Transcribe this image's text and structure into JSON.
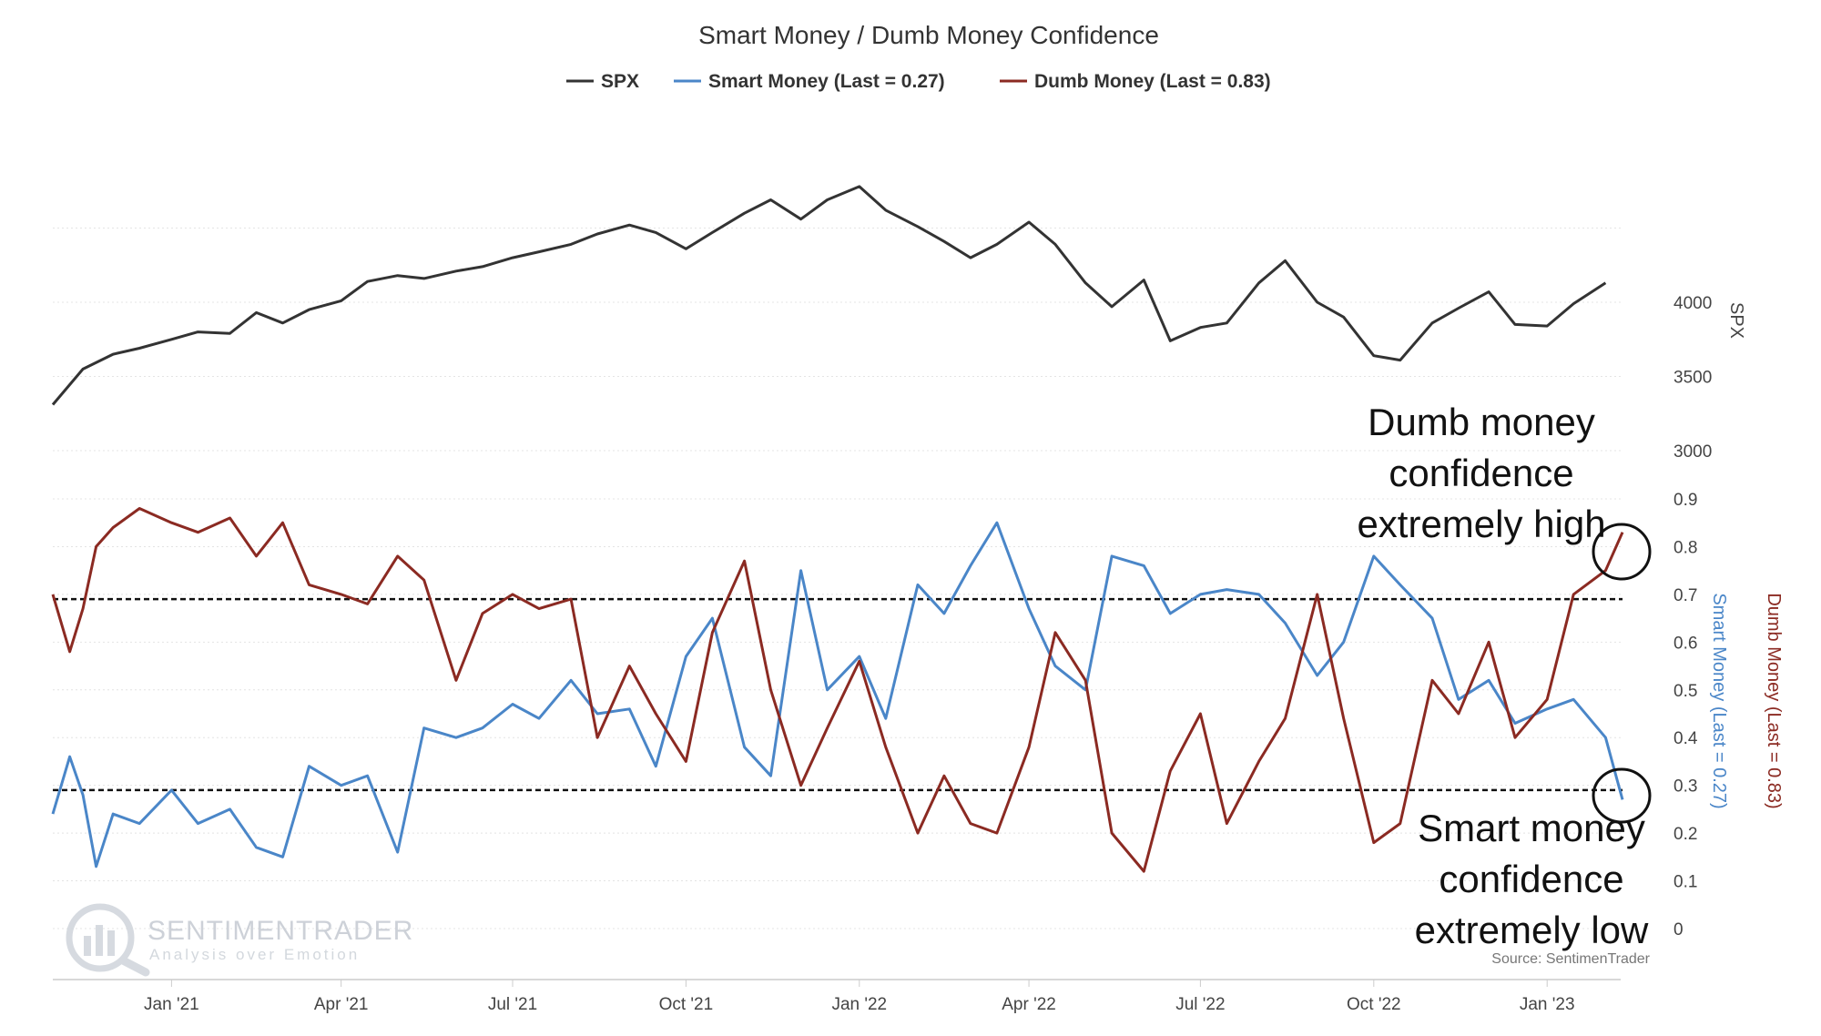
{
  "chart_data": {
    "type": "line",
    "title": "Smart Money / Dumb Money Confidence",
    "legend": [
      {
        "label": "SPX",
        "color": "#333333"
      },
      {
        "label": "Smart Money (Last = 0.27)",
        "color": "#4a86c8"
      },
      {
        "label": "Dumb Money (Last = 0.83)",
        "color": "#8b2a22"
      }
    ],
    "x_ticks": [
      "Jan '21",
      "Apr '21",
      "Jul '21",
      "Oct '21",
      "Jan '22",
      "Apr '22",
      "Jul '22",
      "Oct '22",
      "Jan '23"
    ],
    "spx_axis": {
      "label": "SPX",
      "ticks": [
        "4000",
        "3500",
        "3000"
      ],
      "range": [
        3000,
        4800
      ]
    },
    "confidence_axis": {
      "ticks": [
        "0.9",
        "0.8",
        "0.7",
        "0.6",
        "0.5",
        "0.4",
        "0.3",
        "0.2",
        "0.1",
        "0"
      ],
      "range": [
        0,
        0.9
      ]
    },
    "smart_axis_label": "Smart Money (Last = 0.27)",
    "dumb_axis_label": "Dumb Money (Last = 0.83)",
    "reference_lines": [
      0.69,
      0.29
    ],
    "series": [
      {
        "name": "SPX",
        "color": "#333333",
        "x": [
          "2020-10-30",
          "2020-11-15",
          "2020-12-01",
          "2020-12-15",
          "2021-01-01",
          "2021-01-15",
          "2021-02-01",
          "2021-02-15",
          "2021-03-01",
          "2021-03-15",
          "2021-04-01",
          "2021-04-15",
          "2021-05-01",
          "2021-05-15",
          "2021-06-01",
          "2021-06-15",
          "2021-07-01",
          "2021-07-15",
          "2021-08-01",
          "2021-08-15",
          "2021-09-01",
          "2021-09-15",
          "2021-10-01",
          "2021-10-15",
          "2021-11-01",
          "2021-11-15",
          "2021-12-01",
          "2021-12-15",
          "2022-01-01",
          "2022-01-15",
          "2022-02-01",
          "2022-02-15",
          "2022-03-01",
          "2022-03-15",
          "2022-04-01",
          "2022-04-15",
          "2022-05-01",
          "2022-05-15",
          "2022-06-01",
          "2022-06-15",
          "2022-07-01",
          "2022-07-15",
          "2022-08-01",
          "2022-08-15",
          "2022-09-01",
          "2022-09-15",
          "2022-10-01",
          "2022-10-15",
          "2022-11-01",
          "2022-11-15",
          "2022-12-01",
          "2022-12-15",
          "2023-01-01",
          "2023-01-15",
          "2023-02-01"
        ],
        "y": [
          3310,
          3550,
          3650,
          3690,
          3750,
          3800,
          3790,
          3930,
          3860,
          3950,
          4010,
          4140,
          4180,
          4160,
          4210,
          4240,
          4300,
          4340,
          4390,
          4460,
          4520,
          4470,
          4360,
          4470,
          4600,
          4690,
          4560,
          4690,
          4780,
          4620,
          4510,
          4410,
          4300,
          4390,
          4540,
          4390,
          4130,
          3970,
          4150,
          3740,
          3830,
          3860,
          4130,
          4280,
          4000,
          3900,
          3640,
          3610,
          3860,
          3960,
          4070,
          3850,
          3840,
          3990,
          4130
        ]
      },
      {
        "name": "Smart Money (Last = 0.27)",
        "color": "#4a86c8",
        "x": [
          "2020-10-30",
          "2020-11-08",
          "2020-11-15",
          "2020-11-22",
          "2020-12-01",
          "2020-12-15",
          "2021-01-01",
          "2021-01-15",
          "2021-02-01",
          "2021-02-15",
          "2021-03-01",
          "2021-03-15",
          "2021-04-01",
          "2021-04-15",
          "2021-05-01",
          "2021-05-15",
          "2021-06-01",
          "2021-06-15",
          "2021-07-01",
          "2021-07-15",
          "2021-08-01",
          "2021-08-15",
          "2021-09-01",
          "2021-09-15",
          "2021-10-01",
          "2021-10-15",
          "2021-11-01",
          "2021-11-15",
          "2021-12-01",
          "2021-12-15",
          "2022-01-01",
          "2022-01-15",
          "2022-02-01",
          "2022-02-15",
          "2022-03-01",
          "2022-03-15",
          "2022-04-01",
          "2022-04-15",
          "2022-05-01",
          "2022-05-15",
          "2022-06-01",
          "2022-06-15",
          "2022-07-01",
          "2022-07-15",
          "2022-08-01",
          "2022-08-15",
          "2022-09-01",
          "2022-09-15",
          "2022-10-01",
          "2022-10-15",
          "2022-11-01",
          "2022-11-15",
          "2022-12-01",
          "2022-12-15",
          "2023-01-01",
          "2023-01-15",
          "2023-02-01",
          "2023-02-10"
        ],
        "y": [
          0.24,
          0.36,
          0.28,
          0.13,
          0.24,
          0.22,
          0.29,
          0.22,
          0.25,
          0.17,
          0.15,
          0.34,
          0.3,
          0.32,
          0.16,
          0.42,
          0.4,
          0.42,
          0.47,
          0.44,
          0.52,
          0.45,
          0.46,
          0.34,
          0.57,
          0.65,
          0.38,
          0.32,
          0.75,
          0.5,
          0.57,
          0.44,
          0.72,
          0.66,
          0.76,
          0.85,
          0.67,
          0.55,
          0.5,
          0.78,
          0.76,
          0.66,
          0.7,
          0.71,
          0.7,
          0.64,
          0.53,
          0.6,
          0.78,
          0.72,
          0.65,
          0.48,
          0.52,
          0.43,
          0.46,
          0.48,
          0.4,
          0.27
        ]
      },
      {
        "name": "Dumb Money (Last = 0.83)",
        "color": "#8b2a22",
        "x": [
          "2020-10-30",
          "2020-11-08",
          "2020-11-15",
          "2020-11-22",
          "2020-12-01",
          "2020-12-15",
          "2021-01-01",
          "2021-01-15",
          "2021-02-01",
          "2021-02-15",
          "2021-03-01",
          "2021-03-15",
          "2021-04-01",
          "2021-04-15",
          "2021-05-01",
          "2021-05-15",
          "2021-06-01",
          "2021-06-15",
          "2021-07-01",
          "2021-07-15",
          "2021-08-01",
          "2021-08-15",
          "2021-09-01",
          "2021-09-15",
          "2021-10-01",
          "2021-10-15",
          "2021-11-01",
          "2021-11-15",
          "2021-12-01",
          "2021-12-15",
          "2022-01-01",
          "2022-01-15",
          "2022-02-01",
          "2022-02-15",
          "2022-03-01",
          "2022-03-15",
          "2022-04-01",
          "2022-04-15",
          "2022-05-01",
          "2022-05-15",
          "2022-06-01",
          "2022-06-15",
          "2022-07-01",
          "2022-07-15",
          "2022-08-01",
          "2022-08-15",
          "2022-09-01",
          "2022-09-15",
          "2022-10-01",
          "2022-10-15",
          "2022-11-01",
          "2022-11-15",
          "2022-12-01",
          "2022-12-15",
          "2023-01-01",
          "2023-01-15",
          "2023-02-01",
          "2023-02-10"
        ],
        "y": [
          0.7,
          0.58,
          0.67,
          0.8,
          0.84,
          0.88,
          0.85,
          0.83,
          0.86,
          0.78,
          0.85,
          0.72,
          0.7,
          0.68,
          0.78,
          0.73,
          0.52,
          0.66,
          0.7,
          0.67,
          0.69,
          0.4,
          0.55,
          0.45,
          0.35,
          0.62,
          0.77,
          0.5,
          0.3,
          0.42,
          0.56,
          0.38,
          0.2,
          0.32,
          0.22,
          0.2,
          0.38,
          0.62,
          0.52,
          0.2,
          0.12,
          0.33,
          0.45,
          0.22,
          0.35,
          0.44,
          0.7,
          0.44,
          0.18,
          0.22,
          0.52,
          0.45,
          0.6,
          0.4,
          0.48,
          0.7,
          0.75,
          0.83
        ]
      }
    ],
    "grid": true
  },
  "annotations": {
    "dumb": [
      "Dumb money",
      "confidence",
      "extremely high"
    ],
    "smart": [
      "Smart money",
      "confidence",
      "extremely low"
    ]
  },
  "watermark": {
    "brand": "SENTIMENTRADER",
    "tagline": "Analysis over Emotion"
  },
  "source": "Source: SentimenTrader"
}
